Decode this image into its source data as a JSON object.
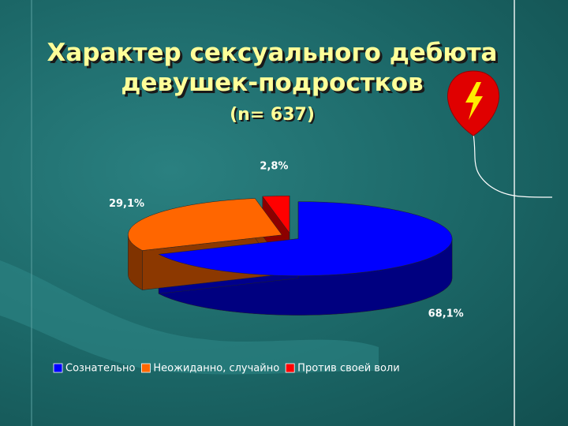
{
  "chart_data": {
    "type": "pie",
    "title": "Характер сексуального дебюта девушек-подростков",
    "subtitle": "(n= 637)",
    "categories": [
      "Сознательно",
      "Неожиданно, случайно",
      "Против своей воли"
    ],
    "values": [
      68.1,
      29.1,
      2.8
    ],
    "value_labels": [
      "68,1%",
      "29,1%",
      "2,8%"
    ],
    "colors": [
      "#0000ff",
      "#ff6600",
      "#ff0000"
    ],
    "legend": "bottom"
  }
}
